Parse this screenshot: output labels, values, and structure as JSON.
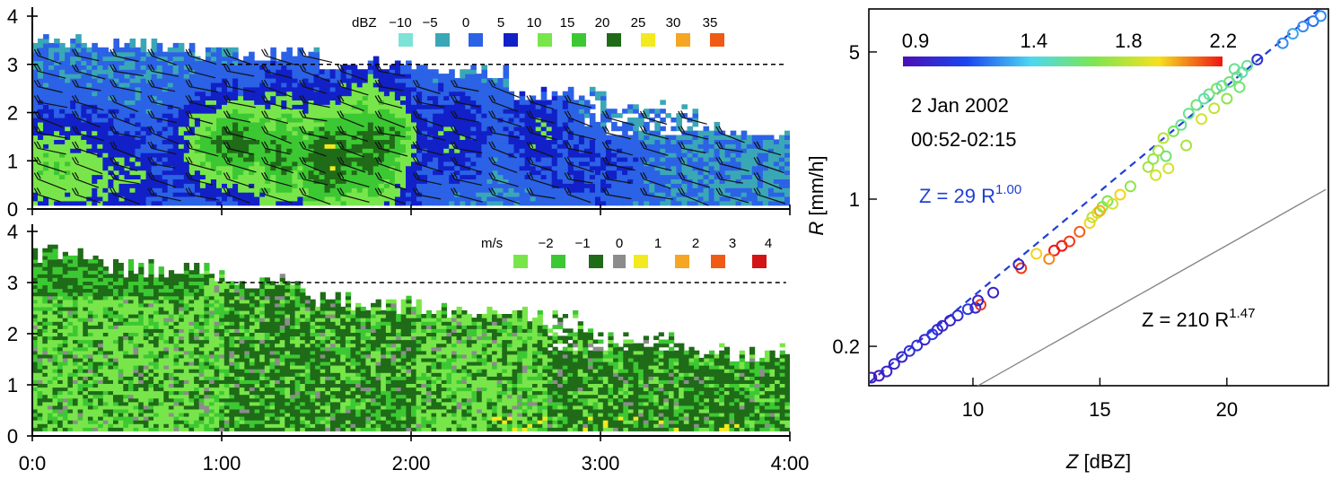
{
  "chart_data": [
    {
      "type": "heatmap",
      "panel": "top",
      "legend_unit": "dBZ",
      "legend_levels": [
        "-10",
        "-5",
        "0",
        "5",
        "10",
        "15",
        "20",
        "25",
        "30",
        "35"
      ],
      "legend_colors": [
        "#7de3d6",
        "#3aa7b7",
        "#2b62e6",
        "#1220c8",
        "#78e64a",
        "#3cc832",
        "#1f6b18",
        "#f2ea1e",
        "#f5a623",
        "#f05a14"
      ],
      "legend_labels": [
        "−10",
        "−5",
        "0",
        "5",
        "10",
        "15",
        "20",
        "25",
        "30",
        "35"
      ],
      "y_ticks": [
        "0",
        "1",
        "2",
        "3",
        "4"
      ],
      "ylim": [
        0,
        4
      ],
      "reference_line_height": 3.0
    },
    {
      "type": "heatmap",
      "panel": "bottom",
      "legend_unit": "m/s",
      "legend_labels": [
        "−2",
        "−1",
        "0",
        "1",
        "2",
        "3",
        "4"
      ],
      "legend_colors": [
        "#78e64a",
        "#3cc832",
        "#1f6b18",
        "#8c8c8c",
        "#f2ea1e",
        "#f5a623",
        "#f05a14",
        "#d21414"
      ],
      "y_ticks": [
        "0",
        "1",
        "2",
        "3",
        "4"
      ],
      "x_ticks": [
        "0:0",
        "1:00",
        "2:00",
        "3:00",
        "4:00"
      ],
      "xlim_hours": [
        0,
        4
      ],
      "ylim": [
        0,
        4
      ],
      "reference_line_height": 3.0
    },
    {
      "type": "scatter",
      "panel": "right",
      "xlabel_var": "Z",
      "xlabel_unit": "[dBZ]",
      "ylabel_var": "R",
      "ylabel_unit": "[mm/h]",
      "x_ticks": [
        "10",
        "15",
        "20"
      ],
      "x_tick_values": [
        10,
        15,
        20
      ],
      "y_ticks": [
        "0.2",
        "1",
        "5"
      ],
      "y_tick_values": [
        0.2,
        1,
        5
      ],
      "xlim": [
        5.9,
        24.0
      ],
      "ylim": [
        0.13,
        8.0
      ],
      "y_scale": "log",
      "colorbar_labels": [
        "0.9",
        "1.4",
        "1.8",
        "2.2"
      ],
      "colorbar_values": [
        0.9,
        1.4,
        1.8,
        2.2
      ],
      "colorbar_range": [
        0.9,
        2.25
      ],
      "date_text": "2 Jan 2002",
      "time_text": "00:52-02:15",
      "fit_line": {
        "label": "Z = 29 R",
        "exponent": "1.00",
        "a": 29,
        "b": 1.0,
        "color": "#1f3fd6"
      },
      "ref_line": {
        "label": "Z = 210 R",
        "exponent": "1.47",
        "a": 210,
        "b": 1.47,
        "color": "#888888"
      },
      "points": [
        [
          6.0,
          0.142,
          0.95
        ],
        [
          6.3,
          0.145,
          0.95
        ],
        [
          6.6,
          0.152,
          1.0
        ],
        [
          6.9,
          0.165,
          1.0
        ],
        [
          7.2,
          0.178,
          1.0
        ],
        [
          7.5,
          0.19,
          1.05
        ],
        [
          7.8,
          0.202,
          1.05
        ],
        [
          8.1,
          0.215,
          1.0
        ],
        [
          8.4,
          0.228,
          1.1
        ],
        [
          8.6,
          0.24,
          1.05
        ],
        [
          8.8,
          0.25,
          1.0
        ],
        [
          9.1,
          0.265,
          1.0
        ],
        [
          9.4,
          0.28,
          1.05
        ],
        [
          9.8,
          0.3,
          1.1
        ],
        [
          10.1,
          0.305,
          1.0
        ],
        [
          10.3,
          0.315,
          2.2
        ],
        [
          10.2,
          0.33,
          1.0
        ],
        [
          10.8,
          0.36,
          1.0
        ],
        [
          11.9,
          0.47,
          2.2
        ],
        [
          11.8,
          0.49,
          1.0
        ],
        [
          12.5,
          0.55,
          2.0
        ],
        [
          13.2,
          0.57,
          2.25
        ],
        [
          13.5,
          0.6,
          2.25
        ],
        [
          13.8,
          0.63,
          2.2
        ],
        [
          14.6,
          0.77,
          2.0
        ],
        [
          14.7,
          0.82,
          1.85
        ],
        [
          14.9,
          0.86,
          1.9
        ],
        [
          15.1,
          0.92,
          1.75
        ],
        [
          15.3,
          0.98,
          1.7
        ],
        [
          15.5,
          0.95,
          1.9
        ],
        [
          15.8,
          1.05,
          2.0
        ],
        [
          16.2,
          1.15,
          1.75
        ],
        [
          16.9,
          1.42,
          1.8
        ],
        [
          17.1,
          1.55,
          1.75
        ],
        [
          17.3,
          1.7,
          1.8
        ],
        [
          17.5,
          1.95,
          1.85
        ],
        [
          17.6,
          1.6,
          1.65
        ],
        [
          17.9,
          2.1,
          1.7
        ],
        [
          18.2,
          2.25,
          1.6
        ],
        [
          18.5,
          2.55,
          1.6
        ],
        [
          18.8,
          2.8,
          1.65
        ],
        [
          19.1,
          3.0,
          1.55
        ],
        [
          19.3,
          3.15,
          1.6
        ],
        [
          19.6,
          3.35,
          1.7
        ],
        [
          19.8,
          3.45,
          1.55
        ],
        [
          20.1,
          3.6,
          1.65
        ],
        [
          20.4,
          3.8,
          1.6
        ],
        [
          20.6,
          4.0,
          1.55
        ],
        [
          20.3,
          4.15,
          1.6
        ],
        [
          20.8,
          4.3,
          1.6
        ],
        [
          21.2,
          4.6,
          1.05
        ],
        [
          22.2,
          5.5,
          1.3
        ],
        [
          22.6,
          6.1,
          1.35
        ],
        [
          23.0,
          6.6,
          1.3
        ],
        [
          23.4,
          7.0,
          1.25
        ],
        [
          23.7,
          7.4,
          1.3
        ],
        [
          17.2,
          1.3,
          1.9
        ],
        [
          17.7,
          1.4,
          1.9
        ],
        [
          18.4,
          1.8,
          1.8
        ],
        [
          19.0,
          2.4,
          1.9
        ],
        [
          19.5,
          2.7,
          1.85
        ],
        [
          20.0,
          3.0,
          1.75
        ],
        [
          20.5,
          3.4,
          1.65
        ],
        [
          13.0,
          0.52,
          2.1
        ],
        [
          14.2,
          0.7,
          2.15
        ],
        [
          15.0,
          0.88,
          2.05
        ]
      ]
    }
  ]
}
